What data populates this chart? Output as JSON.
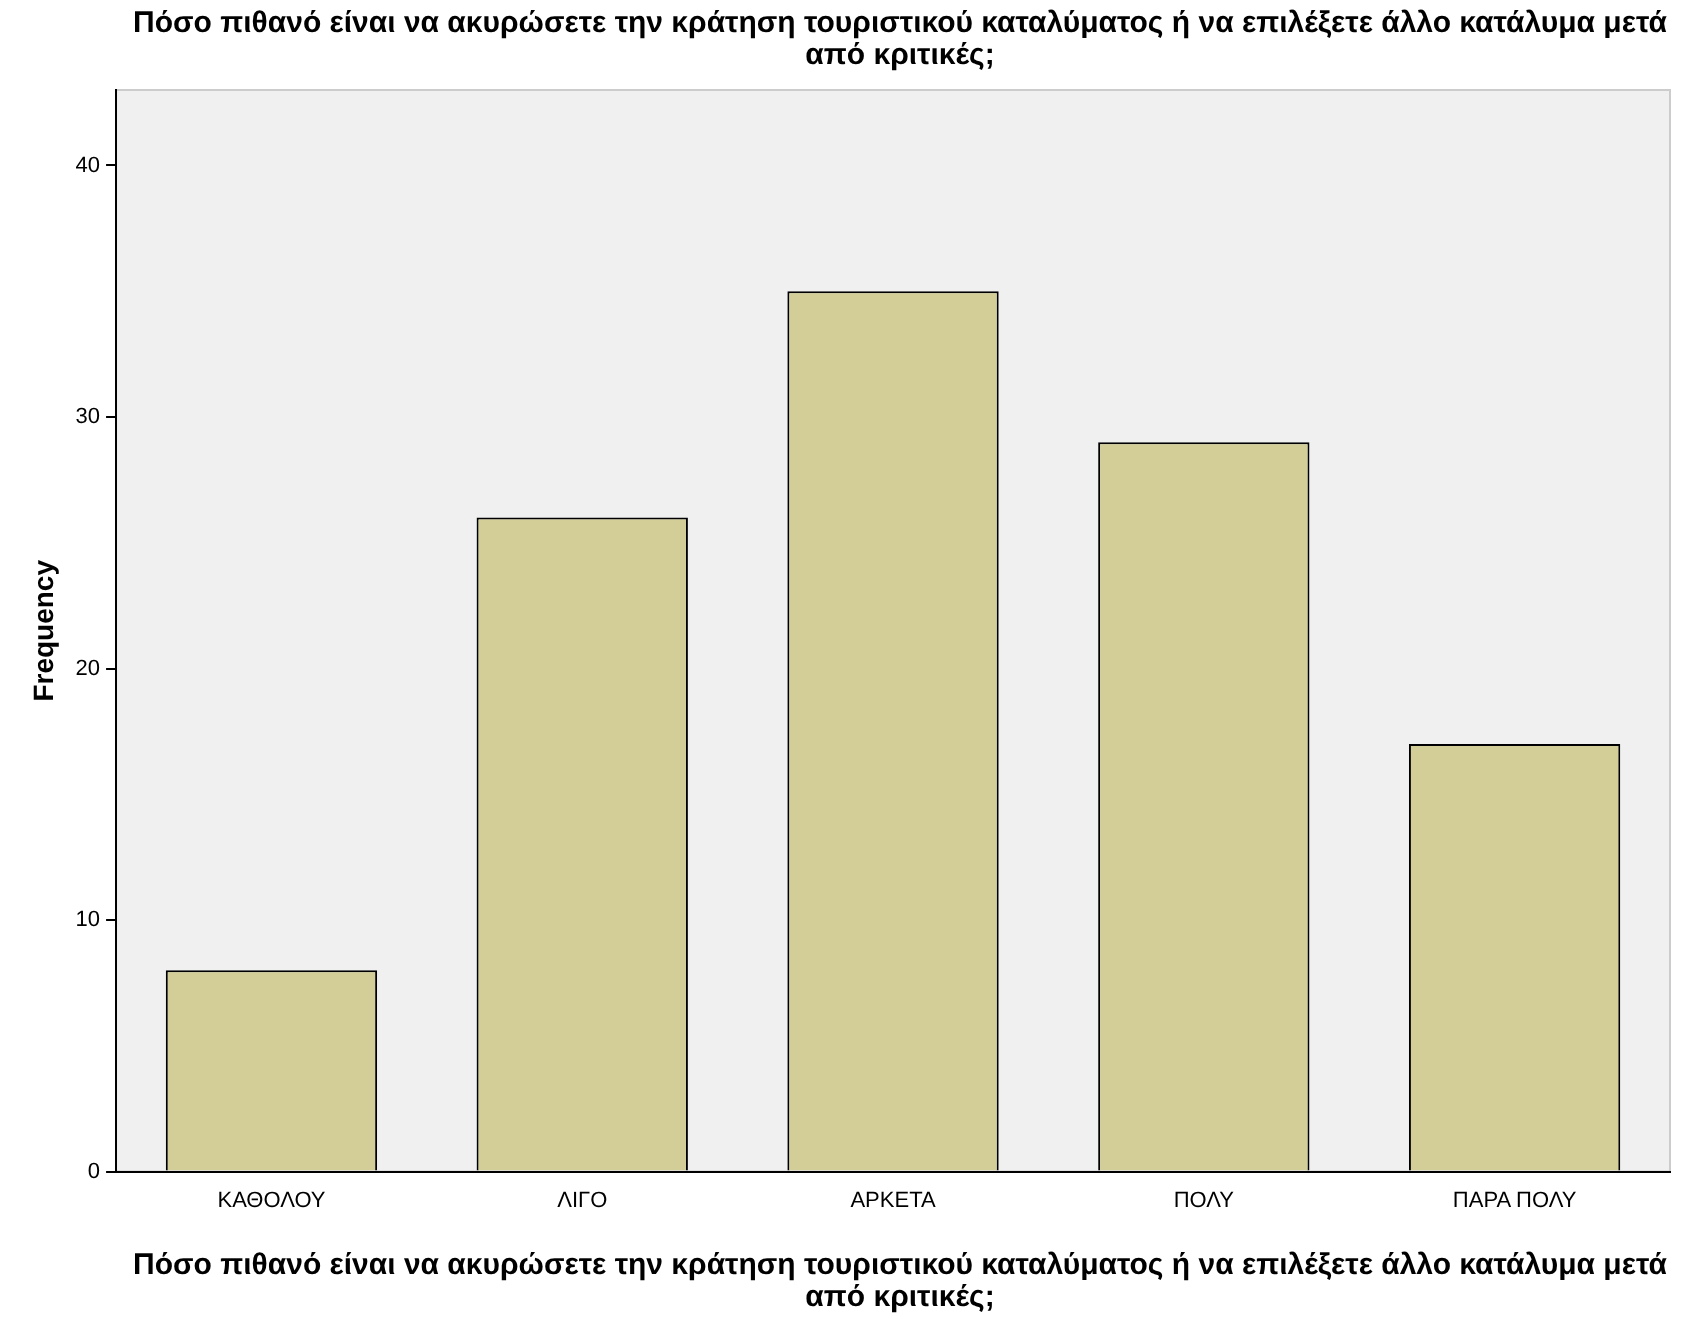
{
  "chart_data": {
    "type": "bar",
    "title": "Πόσο πιθανό είναι να ακυρώσετε την κράτηση τουριστικού καταλύματος ή να επιλέξετε άλλο κατάλυμα μετά από κριτικές;",
    "xlabel": "Πόσο πιθανό είναι να ακυρώσετε την κράτηση τουριστικού καταλύματος ή να επιλέξετε άλλο κατάλυμα μετά από κριτικές;",
    "ylabel": "Frequency",
    "categories": [
      "ΚΑΘΟΛΟΥ",
      "ΛΙΓΟ",
      "ΑΡΚΕΤΑ",
      "ΠΟΛΥ",
      "ΠΑΡΑ ΠΟΛΥ"
    ],
    "values": [
      8,
      26,
      35,
      29,
      17
    ],
    "color": "#d3ce97",
    "ylim": [
      0,
      43
    ],
    "yticks": [
      0,
      10,
      20,
      30,
      40
    ],
    "grid": false,
    "legend": false
  }
}
